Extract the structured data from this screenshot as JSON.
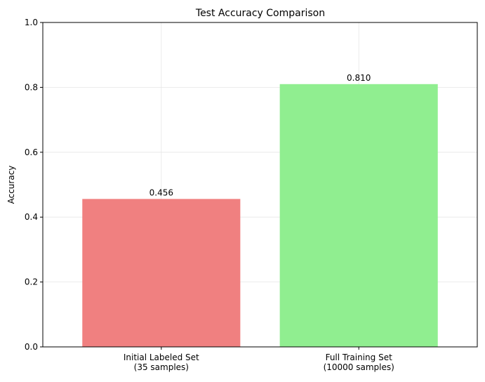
{
  "chart_data": {
    "type": "bar",
    "title": "Test Accuracy Comparison",
    "xlabel": "",
    "ylabel": "Accuracy",
    "ylim": [
      0,
      1.0
    ],
    "yticks": [
      0.0,
      0.2,
      0.4,
      0.6,
      0.8,
      1.0
    ],
    "ytick_labels": [
      "0.0",
      "0.2",
      "0.4",
      "0.6",
      "0.8",
      "1.0"
    ],
    "grid": true,
    "categories": [
      [
        "Initial Labeled Set",
        "(35 samples)"
      ],
      [
        "Full Training Set",
        "(10000 samples)"
      ]
    ],
    "values": [
      0.456,
      0.81
    ],
    "value_labels": [
      "0.456",
      "0.810"
    ],
    "colors": [
      "#f08080",
      "#90ee90"
    ]
  }
}
